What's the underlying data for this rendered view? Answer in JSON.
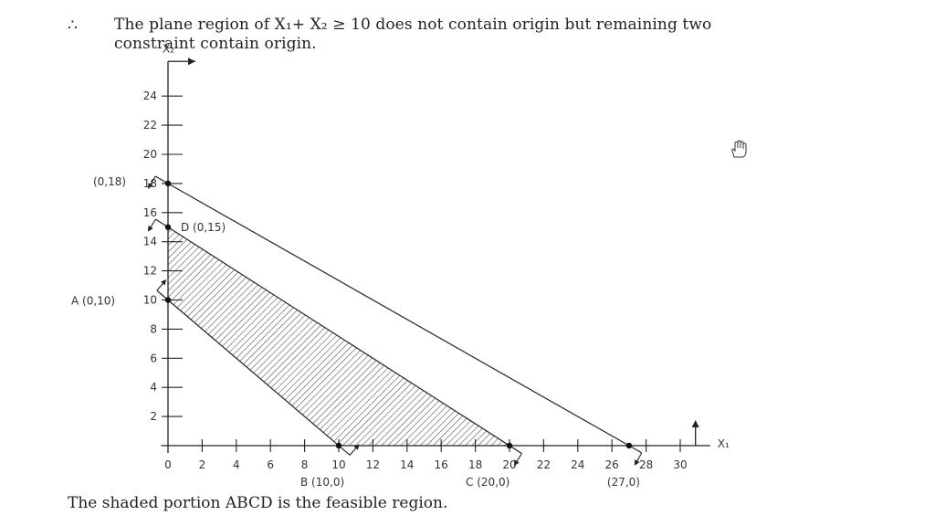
{
  "text": {
    "therefore": "∴",
    "intro": "The plane region of X₁+ X₂ ≥ 10 does not contain origin but remaining two constraint contain origin.",
    "conclusion": "The shaded portion ABCD is the feasible region."
  },
  "chart_data": {
    "type": "line",
    "xlabel": "X₁",
    "ylabel": "X₂",
    "xlim": [
      0,
      31
    ],
    "ylim": [
      0,
      25
    ],
    "x_ticks": [
      0,
      2,
      4,
      6,
      8,
      10,
      12,
      14,
      16,
      18,
      20,
      22,
      24,
      26,
      28,
      30
    ],
    "y_ticks": [
      2,
      4,
      6,
      8,
      10,
      12,
      14,
      16,
      18,
      20,
      22,
      24
    ],
    "constraint_lines": [
      {
        "from": [
          0,
          18
        ],
        "to": [
          27,
          0
        ]
      },
      {
        "from": [
          0,
          15
        ],
        "to": [
          20,
          0
        ]
      },
      {
        "from": [
          0,
          10
        ],
        "to": [
          10,
          0
        ]
      }
    ],
    "points": [
      {
        "label": "A (0,10)",
        "x": 0,
        "y": 10
      },
      {
        "label": "B (10,0)",
        "x": 10,
        "y": 0
      },
      {
        "label": "C (20,0)",
        "x": 20,
        "y": 0
      },
      {
        "label": "D (0,15)",
        "x": 0,
        "y": 15
      },
      {
        "label": "(0,18)",
        "x": 0,
        "y": 18
      },
      {
        "label": "(27,0)",
        "x": 27,
        "y": 0
      }
    ],
    "feasible_region": [
      [
        0,
        10
      ],
      [
        10,
        0
      ],
      [
        20,
        0
      ],
      [
        0,
        15
      ]
    ],
    "grid": false
  },
  "icons": {
    "cursor": "hand-cursor-icon"
  }
}
